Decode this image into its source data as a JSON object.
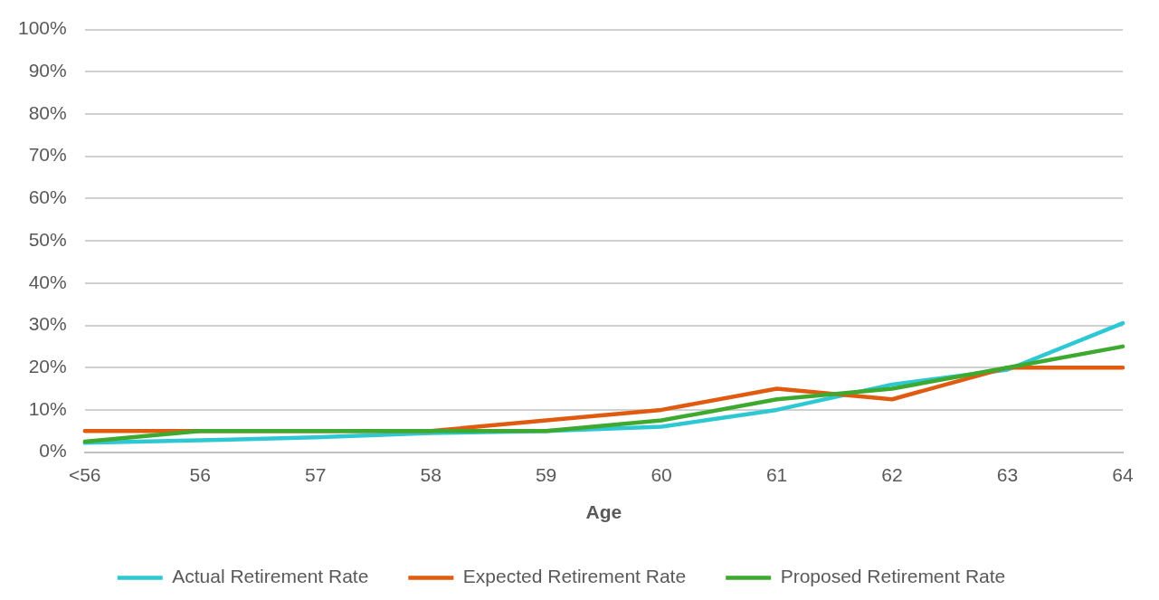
{
  "chart_data": {
    "type": "line",
    "xlabel": "Age",
    "categories": [
      "<56",
      "56",
      "57",
      "58",
      "59",
      "60",
      "61",
      "62",
      "63",
      "64"
    ],
    "series": [
      {
        "name": "Actual Retirement Rate",
        "color": "#2ec8d4",
        "values": [
          2.2,
          2.8,
          3.5,
          4.5,
          5,
          6,
          10,
          16,
          19.5,
          30.5
        ]
      },
      {
        "name": "Expected Retirement Rate",
        "color": "#e05a10",
        "values": [
          5,
          5,
          5,
          5,
          7.5,
          10,
          15,
          12.5,
          20,
          20
        ]
      },
      {
        "name": "Proposed Retirement Rate",
        "color": "#3daa2f",
        "values": [
          2.5,
          5,
          5,
          5,
          5,
          7.5,
          12.5,
          15,
          20,
          25
        ]
      }
    ],
    "ylim": [
      0,
      100
    ],
    "yticks": [
      {
        "value": 0,
        "label": "0%"
      },
      {
        "value": 10,
        "label": "10%"
      },
      {
        "value": 20,
        "label": "20%"
      },
      {
        "value": 30,
        "label": "30%"
      },
      {
        "value": 40,
        "label": "40%"
      },
      {
        "value": 50,
        "label": "50%"
      },
      {
        "value": 60,
        "label": "60%"
      },
      {
        "value": 70,
        "label": "70%"
      },
      {
        "value": 80,
        "label": "80%"
      },
      {
        "value": 90,
        "label": "90%"
      },
      {
        "value": 100,
        "label": "100%"
      }
    ],
    "grid": "y",
    "legend": "bottom",
    "marker": "none",
    "line_style": "solid"
  }
}
